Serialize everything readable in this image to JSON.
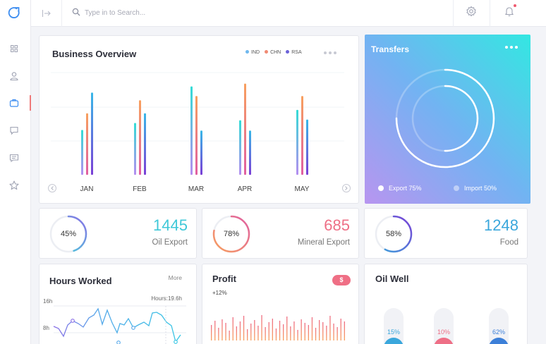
{
  "topbar": {
    "search_placeholder": "Type in to Search..."
  },
  "business_overview": {
    "title": "Business Overview",
    "legend": [
      {
        "name": "IND",
        "color": "#6fb8ee"
      },
      {
        "name": "CHN",
        "color": "#f08a73"
      },
      {
        "name": "RSA",
        "color": "#6b62d8"
      }
    ]
  },
  "chart_data": {
    "type": "bar",
    "categories": [
      "JAN",
      "FEB",
      "MAR",
      "APR",
      "MAY"
    ],
    "series": [
      {
        "name": "IND",
        "values": [
          65,
          75,
          128,
          79,
          94
        ]
      },
      {
        "name": "CHN",
        "values": [
          89,
          108,
          114,
          132,
          114
        ]
      },
      {
        "name": "RSA",
        "values": [
          119,
          89,
          64,
          64,
          80
        ]
      }
    ],
    "ylim": [
      0,
      148
    ],
    "grid": true
  },
  "transfers": {
    "title": "Transfers",
    "export_label": "Export 75%",
    "import_label": "Import 50%",
    "export_pct": 0.75,
    "import_pct": 0.5
  },
  "stats": [
    {
      "percent_label": "45%",
      "percent": 45,
      "value": "1445",
      "label": "Oil Export",
      "color": "#3fc8d8"
    },
    {
      "percent_label": "78%",
      "percent": 78,
      "value": "685",
      "label": "Mineral Export",
      "color": "#ee6f86"
    },
    {
      "percent_label": "58%",
      "percent": 58,
      "value": "1248",
      "label": "Food",
      "color": "#3aa7dc"
    }
  ],
  "hours_worked": {
    "title": "Hours Worked",
    "more": "More",
    "marker_label": "Hours:19.6h",
    "y_labels": [
      "16h",
      "8h"
    ]
  },
  "profit": {
    "title": "Profit",
    "badge": "$",
    "change": "+12%"
  },
  "oil_well": {
    "title": "Oil Well",
    "items": [
      {
        "label": "15%",
        "value": 15,
        "color": "#3aa7dc"
      },
      {
        "label": "10%",
        "value": 10,
        "color": "#ee6f86"
      },
      {
        "label": "62%",
        "value": 62,
        "color": "#3c7fd8"
      }
    ]
  }
}
